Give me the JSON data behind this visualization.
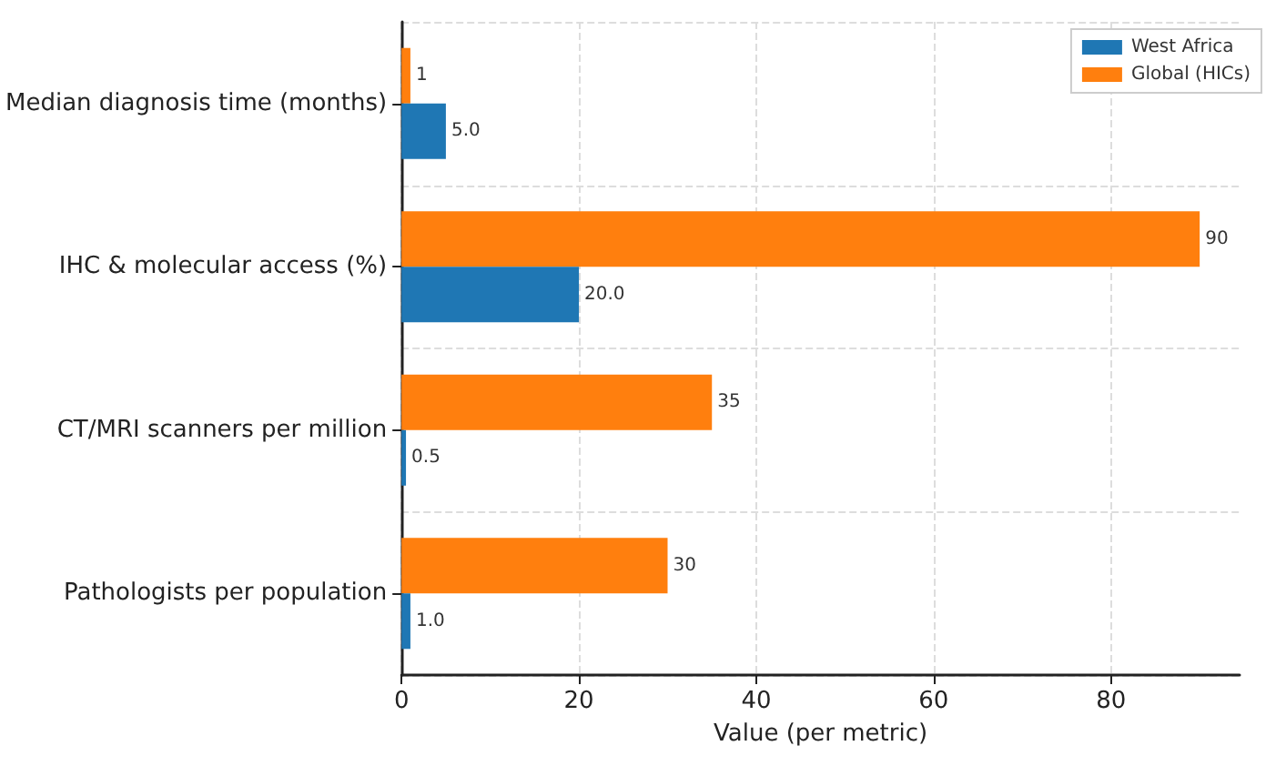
{
  "chart_data": {
    "type": "bar",
    "orientation": "horizontal",
    "xlabel": "Value (per metric)",
    "categories": [
      "Median diagnosis time (months)",
      "IHC & molecular access (%)",
      "CT/MRI scanners per million",
      "Pathologists per population"
    ],
    "series": [
      {
        "name": "West Africa",
        "color": "#1f77b4",
        "values": [
          5.0,
          20.0,
          0.5,
          1.0
        ],
        "value_labels": [
          "5.0",
          "20.0",
          "0.5",
          "1.0"
        ]
      },
      {
        "name": "Global (HICs)",
        "color": "#ff7f0e",
        "values": [
          1,
          90,
          35,
          30
        ],
        "value_labels": [
          "1",
          "90",
          "35",
          "30"
        ]
      }
    ],
    "xlim": [
      0,
      94.5
    ],
    "xticks": [
      0,
      20,
      40,
      60,
      80
    ],
    "grid": true,
    "legend": "top right"
  }
}
